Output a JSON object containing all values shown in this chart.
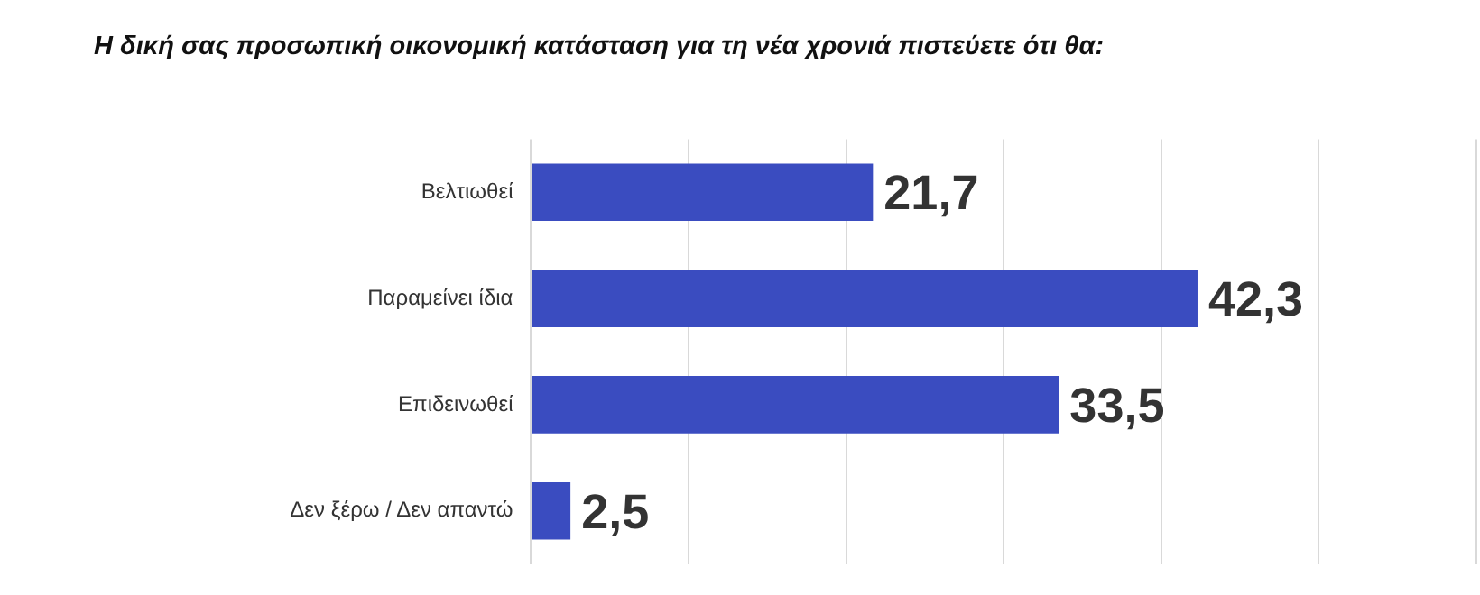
{
  "chart_data": {
    "type": "bar",
    "orientation": "horizontal",
    "title": "Η δική σας προσωπική οικονομική κατάσταση για τη νέα χρονιά πιστεύετε ότι θα:",
    "categories": [
      "Βελτιωθεί",
      "Παραμείνει ίδια",
      "Επιδεινωθεί",
      "Δεν ξέρω / Δεν απαντώ"
    ],
    "values": [
      21.7,
      42.3,
      33.5,
      2.5
    ],
    "value_labels": [
      "21,7",
      "42,3",
      "33,5",
      "2,5"
    ],
    "color": "#3a4cc0",
    "xlim": [
      0,
      60
    ],
    "xticks": [
      {
        "value": 0,
        "label": null
      },
      {
        "value": 10,
        "label": null
      },
      {
        "value": 20,
        "label": null
      },
      {
        "value": 30,
        "label": null
      },
      {
        "value": 40,
        "label": null
      },
      {
        "value": 50,
        "label": null
      },
      {
        "value": 60,
        "label": null
      }
    ],
    "grid": "x",
    "tick_labels": "y",
    "legend": false
  }
}
